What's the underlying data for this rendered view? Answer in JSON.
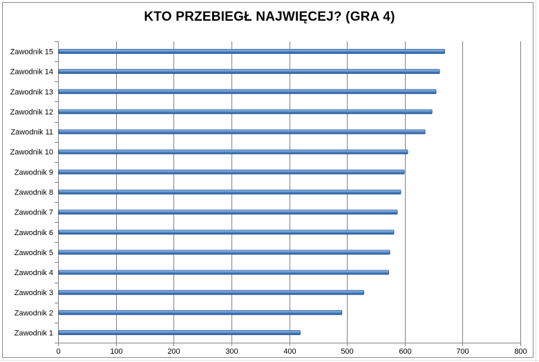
{
  "chart_data": {
    "type": "bar",
    "orientation": "horizontal",
    "title": "KTO PRZEBIEGŁ NAJWIĘCEJ? (GRA 4)",
    "xlabel": "",
    "ylabel": "",
    "categories": [
      "Zawodnik 1",
      "Zawodnik 2",
      "Zawodnik 3",
      "Zawodnik 4",
      "Zawodnik 5",
      "Zawodnik 6",
      "Zawodnik 7",
      "Zawodnik 8",
      "Zawodnik 9",
      "Zawodnik 10",
      "Zawodnik 11",
      "Zawodnik 12",
      "Zawodnik 13",
      "Zawodnik 14",
      "Zawodnik 15"
    ],
    "values": [
      418,
      490,
      528,
      571,
      573,
      580,
      586,
      592,
      598,
      604,
      634,
      646,
      653,
      659,
      668
    ],
    "xlim": [
      0,
      800
    ],
    "xticks": [
      "0",
      "100",
      "200",
      "300",
      "400",
      "500",
      "600",
      "700",
      "800"
    ],
    "grid": "vertical",
    "legend": "none",
    "bar_color": "#4f81bd"
  }
}
